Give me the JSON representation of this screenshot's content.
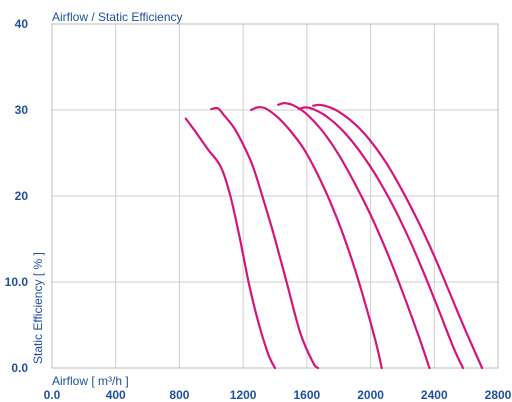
{
  "chart_data": {
    "type": "line",
    "title": "Airflow / Static Efficiency",
    "xlabel": "Airflow [ m³/h ]",
    "ylabel": "Static Efficiency [ % ]",
    "xlim": [
      0,
      2800
    ],
    "ylim": [
      0,
      40
    ],
    "x_ticks": [
      "0.0",
      "400",
      "800",
      "1200",
      "1600",
      "2000",
      "2400",
      "2800"
    ],
    "y_ticks": [
      "0.0",
      "10.0",
      "20",
      "30",
      "40"
    ],
    "grid": true,
    "line_color": "#d6157a",
    "series": [
      {
        "x": [
          840,
          900,
          980,
          1060,
          1120,
          1180,
          1240,
          1300,
          1360,
          1400
        ],
        "y": [
          29,
          27.5,
          25.4,
          23.4,
          20,
          15,
          9.5,
          5,
          1.5,
          0
        ]
      },
      {
        "x": [
          1000,
          1040,
          1080,
          1140,
          1200,
          1260,
          1320,
          1400,
          1480,
          1560,
          1640,
          1670
        ],
        "y": [
          30.1,
          30.2,
          29.4,
          28,
          26,
          23.5,
          20,
          15,
          9.5,
          4,
          0.6,
          0
        ]
      },
      {
        "x": [
          1250,
          1290,
          1340,
          1420,
          1500,
          1580,
          1660,
          1740,
          1820,
          1900,
          1980,
          2040,
          2070
        ],
        "y": [
          30,
          30.3,
          30.2,
          29.1,
          27.5,
          25.5,
          22.8,
          19.6,
          15.9,
          11.6,
          6.6,
          2.5,
          0
        ]
      },
      {
        "x": [
          1420,
          1460,
          1520,
          1600,
          1700,
          1800,
          1900,
          2000,
          2100,
          2200,
          2300,
          2370
        ],
        "y": [
          30.6,
          30.8,
          30.5,
          29.5,
          27.5,
          24.8,
          21.5,
          17.8,
          13.6,
          8.9,
          3.8,
          0
        ]
      },
      {
        "x": [
          1550,
          1590,
          1640,
          1720,
          1820,
          1920,
          2020,
          2120,
          2220,
          2320,
          2420,
          2520,
          2580
        ],
        "y": [
          30.1,
          30.3,
          30.1,
          29.3,
          27.7,
          25.5,
          22.8,
          19.6,
          15.9,
          11.7,
          7.1,
          2.4,
          0
        ]
      },
      {
        "x": [
          1640,
          1680,
          1730,
          1800,
          1900,
          2000,
          2100,
          2200,
          2300,
          2400,
          2500,
          2600,
          2700
        ],
        "y": [
          30.5,
          30.6,
          30.4,
          29.8,
          28.4,
          26.4,
          23.8,
          20.6,
          17,
          13,
          8.6,
          4.2,
          0
        ]
      }
    ]
  }
}
